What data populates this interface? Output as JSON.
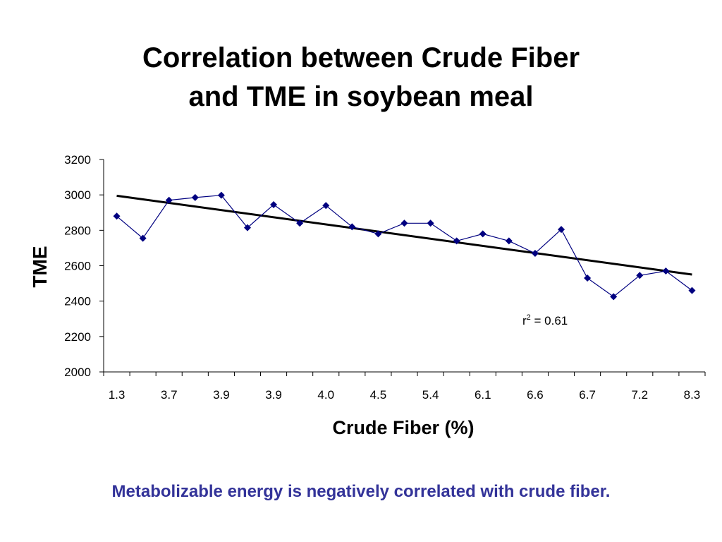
{
  "slide": {
    "title_line1": "Correlation between Crude Fiber",
    "title_line2": "and TME in soybean meal",
    "footnote": "Metabolizable energy is negatively correlated with crude fiber."
  },
  "chart_data": {
    "type": "line",
    "title": "",
    "xlabel": "Crude Fiber (%)",
    "ylabel": "TME",
    "ylim": [
      2000,
      3200
    ],
    "yticks": [
      2000,
      2200,
      2400,
      2600,
      2800,
      3000,
      3200
    ],
    "x_tick_labels": [
      "1.3",
      "3.7",
      "3.9",
      "3.9",
      "4.0",
      "4.5",
      "5.4",
      "6.1",
      "6.6",
      "6.7",
      "7.2",
      "8.3"
    ],
    "grid": false,
    "series": [
      {
        "color": "#000080",
        "marker": "diamond",
        "values": [
          2880,
          2755,
          2970,
          2985,
          2998,
          2815,
          2945,
          2840,
          2940,
          2820,
          2780,
          2840,
          2840,
          2740,
          2780,
          2740,
          2670,
          2805,
          2530,
          2425,
          2545,
          2570,
          2460
        ]
      }
    ],
    "trendline": {
      "type": "linear",
      "start": 2995,
      "end": 2550,
      "color": "#000000"
    },
    "annotation": {
      "base": "r",
      "superscript": "2",
      "text": " = 0.61"
    }
  }
}
